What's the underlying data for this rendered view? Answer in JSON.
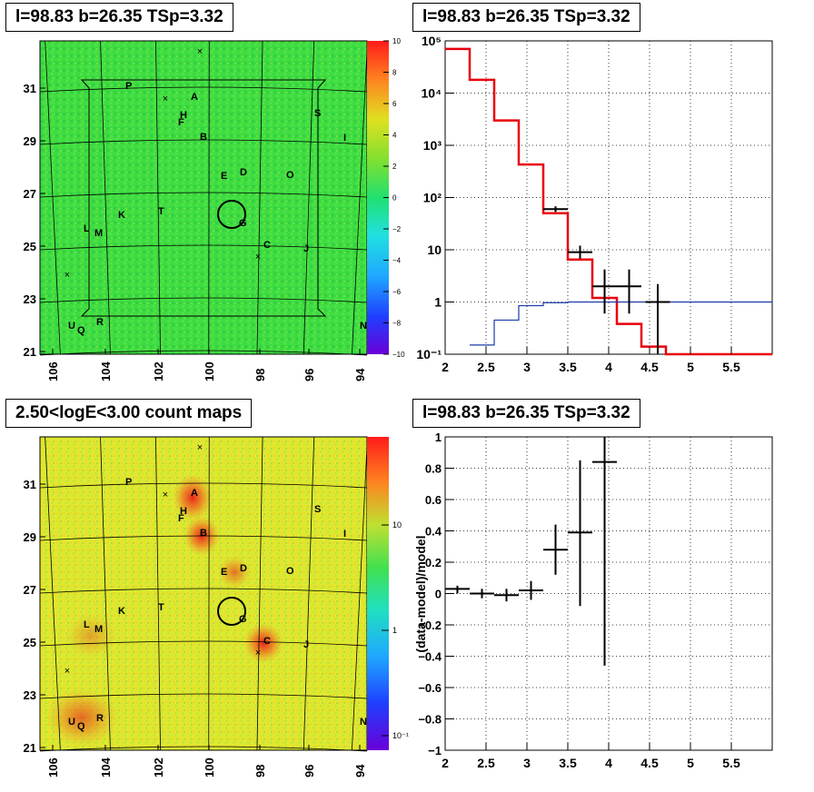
{
  "panels": {
    "tl_title": "l=98.83 b=26.35 TSp=3.32",
    "tr_title": "l=98.83 b=26.35 TSp=3.32",
    "bl_title": "2.50<logE<3.00 count maps",
    "br_title": "l=98.83 b=26.35 TSp=3.32"
  },
  "maps": {
    "lon_ticks": [
      "106",
      "104",
      "102",
      "100",
      "98",
      "96",
      "94"
    ],
    "lat_ticks": [
      "31",
      "29",
      "27",
      "25",
      "23",
      "21"
    ],
    "source_labels": [
      "P",
      "A",
      "H",
      "F",
      "B",
      "S",
      "I",
      "E",
      "D",
      "O",
      "K",
      "T",
      "L",
      "M",
      "G",
      "C",
      "J",
      "U",
      "Q",
      "R",
      "N"
    ],
    "top_colorbar_ticks": [
      "10",
      "8",
      "6",
      "4",
      "2",
      "0",
      "−2",
      "−4",
      "−6",
      "−8",
      "−10"
    ],
    "bottom_colorbar_ticks": [
      "10",
      "1",
      "10⁻¹"
    ],
    "colors": {
      "top_map_bg": "#3ddc3f",
      "bottom_map_bg": "#d9e830",
      "hotspot": "#e53a1e"
    }
  },
  "chart_data": [
    {
      "type": "line",
      "name_panel": "spectrum",
      "title": "l=98.83 b=26.35 TSp=3.32",
      "xlabel": "",
      "ylabel": "",
      "xlim": [
        2,
        6
      ],
      "ylim": [
        0.1,
        100000
      ],
      "yscale": "log",
      "grid": true,
      "x_ticks": [
        "2",
        "2.5",
        "3",
        "3.5",
        "4",
        "4.5",
        "5",
        "5.5"
      ],
      "y_ticks": [
        "10⁵",
        "10⁴",
        "10³",
        "10²",
        "10",
        "1",
        "10⁻¹"
      ],
      "series": [
        {
          "color": "#e8000b",
          "steps": [
            [
              2.0,
              2.3,
              70000
            ],
            [
              2.3,
              2.6,
              18000
            ],
            [
              2.6,
              2.9,
              3000
            ],
            [
              2.9,
              3.2,
              430
            ],
            [
              3.2,
              3.5,
              50
            ],
            [
              3.5,
              3.8,
              6.5
            ],
            [
              3.8,
              4.1,
              1.2
            ],
            [
              4.1,
              4.4,
              0.38
            ],
            [
              4.4,
              4.7,
              0.14
            ],
            [
              4.7,
              6.0,
              0.1
            ]
          ]
        },
        {
          "color": "#1a3aa8",
          "steps": [
            [
              2.3,
              2.6,
              0.15
            ],
            [
              2.6,
              2.9,
              0.45
            ],
            [
              2.9,
              3.2,
              0.85
            ],
            [
              3.2,
              3.5,
              0.97
            ],
            [
              3.5,
              6.0,
              1.0
            ]
          ]
        },
        {
          "color": "#000000",
          "points": [
            {
              "x": 3.35,
              "y": 60,
              "xerr": 0.15,
              "ylo": 53,
              "yhi": 68
            },
            {
              "x": 3.65,
              "y": 9,
              "xerr": 0.15,
              "ylo": 6.8,
              "yhi": 12
            },
            {
              "x": 3.95,
              "y": 2,
              "xerr": 0.15,
              "ylo": 0.6,
              "yhi": 4.2
            },
            {
              "x": 4.25,
              "y": 2,
              "xerr": 0.15,
              "ylo": 0.6,
              "yhi": 4.2
            },
            {
              "x": 4.6,
              "y": 1,
              "xerr": 0.15,
              "ylo": 0.1,
              "yhi": 2.2
            }
          ]
        }
      ]
    },
    {
      "type": "scatter",
      "name_panel": "residuals",
      "title": "l=98.83 b=26.35 TSp=3.32",
      "xlabel": "",
      "ylabel": "(data-model)/model",
      "xlim": [
        2,
        6
      ],
      "ylim": [
        -1,
        1
      ],
      "grid": true,
      "x_ticks": [
        "2",
        "2.5",
        "3",
        "3.5",
        "4",
        "4.5",
        "5",
        "5.5"
      ],
      "y_ticks": [
        "1",
        "0.8",
        "0.6",
        "0.4",
        "0.2",
        "0",
        "−0.2",
        "−0.4",
        "−0.6",
        "−0.8",
        "−1"
      ],
      "series": [
        {
          "color": "#000000",
          "points": [
            {
              "x": 2.15,
              "y": 0.03,
              "xerr": 0.15,
              "ylo": 0.0,
              "yhi": 0.05
            },
            {
              "x": 2.45,
              "y": 0.0,
              "xerr": 0.15,
              "ylo": -0.03,
              "yhi": 0.03
            },
            {
              "x": 2.75,
              "y": -0.01,
              "xerr": 0.15,
              "ylo": -0.05,
              "yhi": 0.03
            },
            {
              "x": 3.05,
              "y": 0.02,
              "xerr": 0.15,
              "ylo": -0.04,
              "yhi": 0.08
            },
            {
              "x": 3.35,
              "y": 0.28,
              "xerr": 0.15,
              "ylo": 0.12,
              "yhi": 0.44
            },
            {
              "x": 3.65,
              "y": 0.39,
              "xerr": 0.15,
              "ylo": -0.08,
              "yhi": 0.85
            },
            {
              "x": 3.95,
              "y": 0.84,
              "xerr": 0.15,
              "ylo": -0.46,
              "yhi": 1.0
            }
          ]
        }
      ]
    }
  ]
}
